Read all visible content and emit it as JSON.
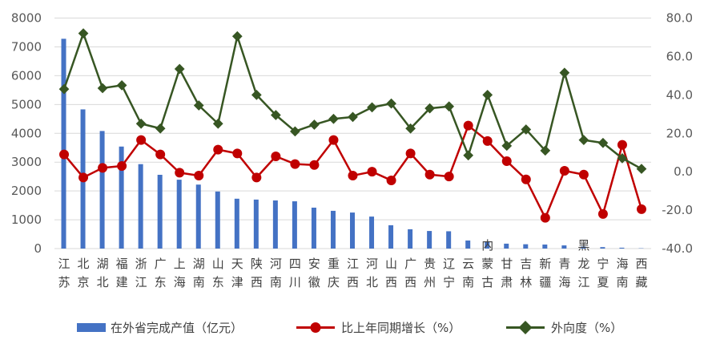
{
  "chart_data": {
    "type": "bar",
    "categories": [
      "江苏",
      "北京",
      "湖北",
      "福建",
      "浙江",
      "广东",
      "上海",
      "湖南",
      "山东",
      "天津",
      "陕西",
      "河南",
      "四川",
      "安徽",
      "重庆",
      "江西",
      "河北",
      "山西",
      "广西",
      "贵州",
      "辽宁",
      "云南",
      "内蒙古",
      "甘肃",
      "吉林",
      "新疆",
      "青海",
      "黑龙江",
      "宁夏",
      "海南",
      "西藏"
    ],
    "series": [
      {
        "name": "在外省完成产值（亿元）",
        "type": "bar",
        "axis": "left",
        "values": [
          7280,
          4830,
          4080,
          3540,
          2930,
          2560,
          2390,
          2220,
          1980,
          1730,
          1700,
          1670,
          1640,
          1420,
          1310,
          1250,
          1110,
          810,
          670,
          610,
          600,
          280,
          250,
          170,
          150,
          140,
          110,
          70,
          50,
          30,
          10
        ]
      },
      {
        "name": "比上年同期增长（%）",
        "type": "line",
        "axis": "right",
        "values": [
          9,
          -3,
          2,
          3,
          16.5,
          9,
          -0.5,
          -2,
          11.5,
          9.5,
          -3,
          8,
          4,
          3.5,
          16.5,
          -2,
          0,
          -4.5,
          9.5,
          -1.5,
          -2.5,
          24,
          16,
          5.5,
          -4,
          -24,
          0.5,
          -1.5,
          -22,
          14,
          -19.5
        ]
      },
      {
        "name": "外向度（%）",
        "type": "line",
        "axis": "right",
        "values": [
          43,
          72,
          43.5,
          45,
          25,
          22.5,
          53.5,
          34.5,
          25,
          70.5,
          40,
          29.5,
          21,
          24.5,
          27.5,
          28.5,
          33.5,
          35.5,
          22.5,
          33,
          34,
          8.5,
          40,
          13.5,
          22,
          11,
          51.5,
          16.5,
          15,
          7,
          1.5
        ]
      }
    ],
    "y_left": {
      "ticks": [
        "0",
        "1000",
        "2000",
        "3000",
        "4000",
        "5000",
        "6000",
        "7000",
        "8000"
      ],
      "range": [
        0,
        8000
      ]
    },
    "y_right": {
      "ticks": [
        "-40.0",
        "-20.0",
        "0.0",
        "20.0",
        "40.0",
        "60.0",
        "80.0"
      ],
      "range": [
        -40,
        80
      ]
    },
    "colors": {
      "bar": "#4472C4",
      "growth": "#C00000",
      "outward": "#375623",
      "grid": "#D9D9D9"
    },
    "grid": true,
    "legend_position": "bottom"
  }
}
